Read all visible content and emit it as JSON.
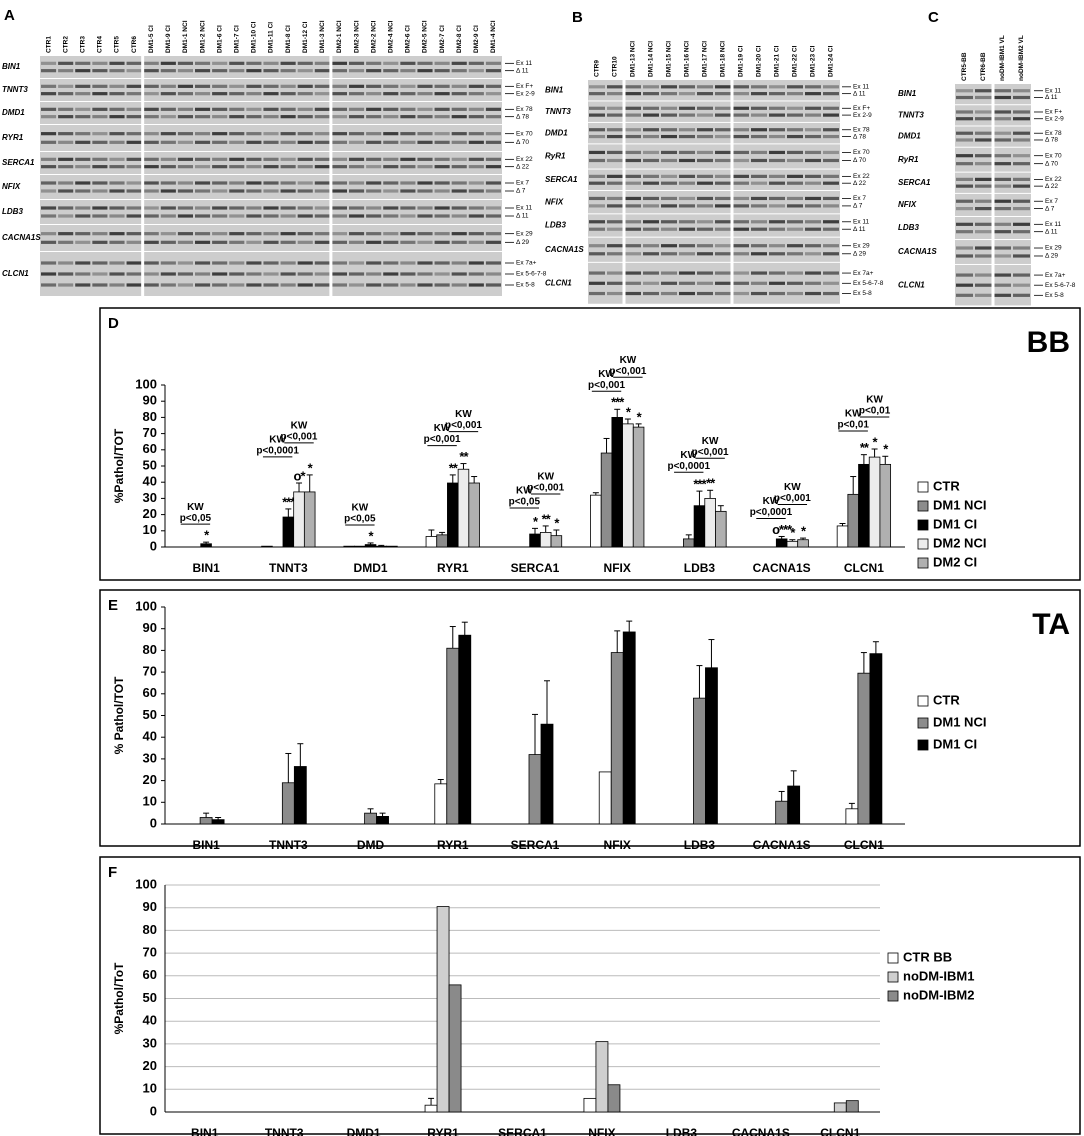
{
  "gels": [
    {
      "letter": "A",
      "lanes": [
        "CTR1",
        "CTR2",
        "CTR3",
        "CTR4",
        "CTR5",
        "CTR6",
        "DM1-5 CI",
        "DM1-9 CI",
        "DM1-1 NCI",
        "DM1-2 NCI",
        "DM1-6 CI",
        "DM1-7 CI",
        "DM1-10 CI",
        "DM1-11 CI",
        "DM1-8 CI",
        "DM1-12 CI",
        "DM1-3 NCI",
        "DM2-1 NCI",
        "DM2-3 NCI",
        "DM2-2 NCI",
        "DM2-4 NCI",
        "DM2-6 CI",
        "DM2-5 NCI",
        "DM2-7 CI",
        "DM2-8 CI",
        "DM2-9 CI",
        "DM1-4 NCI"
      ],
      "rows": [
        {
          "gene": "BIN1",
          "bands": [
            "Ex 11",
            "Δ 11"
          ]
        },
        {
          "gene": "TNNT3",
          "bands": [
            "Ex F+",
            "Ex 2-9"
          ]
        },
        {
          "gene": "DMD1",
          "bands": [
            "Ex 78",
            "Δ 78"
          ]
        },
        {
          "gene": "RYR1",
          "bands": [
            "Ex 70",
            "Δ 70"
          ]
        },
        {
          "gene": "SERCA1",
          "bands": [
            "Ex 22",
            "Δ 22"
          ]
        },
        {
          "gene": "NFIX",
          "bands": [
            "Ex 7",
            "Δ 7"
          ]
        },
        {
          "gene": "LDB3",
          "bands": [
            "Ex 11",
            "Δ 11"
          ]
        },
        {
          "gene": "CACNA1S",
          "bands": [
            "Ex 29",
            "Δ 29"
          ]
        },
        {
          "gene": "CLCN1",
          "bands": [
            "Ex 7a+",
            "Ex 5-6-7-8",
            "Ex 5-8"
          ]
        }
      ]
    },
    {
      "letter": "B",
      "lanes": [
        "CTR9",
        "CTR10",
        "DM1-13 NCI",
        "DM1-14 NCI",
        "DM1-15 NCI",
        "DM1-16 NCI",
        "DM1-17 NCI",
        "DM1-18 NCI",
        "DM1-19 CI",
        "DM1-20 CI",
        "DM1-21 CI",
        "DM1-22 CI",
        "DM1-23 CI",
        "DM1-24 CI"
      ],
      "rows": [
        {
          "gene": "BIN1",
          "bands": [
            "Ex 11",
            "Δ 11"
          ]
        },
        {
          "gene": "TNNT3",
          "bands": [
            "Ex F+",
            "Ex 2-9"
          ]
        },
        {
          "gene": "DMD1",
          "bands": [
            "Ex 78",
            "Δ 78"
          ]
        },
        {
          "gene": "RyR1",
          "bands": [
            "Ex 70",
            "Δ 70"
          ]
        },
        {
          "gene": "SERCA1",
          "bands": [
            "Ex 22",
            "Δ 22"
          ]
        },
        {
          "gene": "NFIX",
          "bands": [
            "Ex 7",
            "Δ 7"
          ]
        },
        {
          "gene": "LDB3",
          "bands": [
            "Ex 11",
            "Δ 11"
          ]
        },
        {
          "gene": "CACNA1S",
          "bands": [
            "Ex 29",
            "Δ 29"
          ]
        },
        {
          "gene": "CLCN1",
          "bands": [
            "Ex 7a+",
            "Ex 5-6-7-8",
            "Ex 5-8"
          ]
        }
      ]
    },
    {
      "letter": "C",
      "lanes": [
        "CTR5-BB",
        "CTR6-BB",
        "noDM-IBM1 VL",
        "noDM-IBM2 VL"
      ],
      "rows": [
        {
          "gene": "BIN1",
          "bands": [
            "Ex 11",
            "Δ 11"
          ]
        },
        {
          "gene": "TNNT3",
          "bands": [
            "Ex F+",
            "Ex 2-9"
          ]
        },
        {
          "gene": "DMD1",
          "bands": [
            "Ex 78",
            "Δ 78"
          ]
        },
        {
          "gene": "RyR1",
          "bands": [
            "Ex 70",
            "Δ 70"
          ]
        },
        {
          "gene": "SERCA1",
          "bands": [
            "Ex 22",
            "Δ 22"
          ]
        },
        {
          "gene": "NFIX",
          "bands": [
            "Ex 7",
            "Δ 7"
          ]
        },
        {
          "gene": "LDB3",
          "bands": [
            "Ex 11",
            "Δ 11"
          ]
        },
        {
          "gene": "CACNA1S",
          "bands": [
            "Ex 29",
            "Δ 29"
          ]
        },
        {
          "gene": "CLCN1",
          "bands": [
            "Ex 7a+",
            "Ex 5-6-7-8",
            "Ex 5-8"
          ]
        }
      ]
    }
  ],
  "chart_data": [
    {
      "type": "bar",
      "letter": "D",
      "tag": "BB",
      "ylabel": "%Pathol/TOT",
      "grid": false,
      "categories": [
        "BIN1",
        "TNNT3",
        "DMD1",
        "RYR1",
        "SERCA1",
        "NFIX",
        "LDB3",
        "CACNA1S",
        "CLCN1"
      ],
      "ylim": [
        0,
        100
      ],
      "yticks": [
        0,
        10,
        20,
        30,
        40,
        50,
        60,
        70,
        80,
        90,
        100
      ],
      "series": [
        {
          "name": "CTR",
          "color": "#ffffff",
          "values": [
            0,
            0.5,
            0.5,
            6.5,
            0,
            32,
            0,
            0,
            13
          ],
          "errors": [
            0,
            0,
            0,
            4,
            0,
            1.5,
            0,
            0,
            1.5
          ],
          "markers": [
            null,
            null,
            null,
            null,
            null,
            null,
            null,
            null,
            null
          ]
        },
        {
          "name": "DM1 NCI",
          "color": "#8c8c8c",
          "values": [
            0,
            0,
            0.5,
            7.5,
            0,
            58,
            5,
            0,
            32.5
          ],
          "errors": [
            0,
            0,
            0,
            1.5,
            0,
            9,
            2.5,
            0,
            11
          ],
          "markers": [
            null,
            null,
            null,
            null,
            null,
            null,
            null,
            null,
            null
          ]
        },
        {
          "name": "DM1 CI",
          "color": "#000000",
          "values": [
            2,
            18.5,
            1.5,
            39.5,
            8,
            80,
            25.5,
            5,
            51
          ],
          "errors": [
            1,
            5,
            1,
            5,
            3.5,
            5,
            9,
            1.5,
            6
          ],
          "markers": [
            "*",
            "***",
            "*",
            "**",
            "*",
            "***",
            "***",
            "o***",
            "**"
          ]
        },
        {
          "name": "DM2 NCI",
          "color": "#ececec",
          "values": [
            0,
            34,
            0.5,
            48,
            9,
            76,
            30,
            3.5,
            55.5
          ],
          "errors": [
            0,
            5.5,
            0.5,
            3.5,
            4,
            3,
            5,
            1,
            5
          ],
          "markers": [
            null,
            "o*",
            null,
            "**",
            "**",
            "*",
            "**",
            "*",
            "*"
          ]
        },
        {
          "name": "DM2 CI",
          "color": "#b0b0b0",
          "values": [
            0,
            34,
            0.5,
            39.5,
            7,
            74,
            22,
            4.5,
            51
          ],
          "errors": [
            0,
            10.5,
            0,
            4,
            3.5,
            2,
            3.5,
            1,
            5
          ],
          "markers": [
            null,
            "*",
            null,
            null,
            "*",
            "*",
            null,
            "*",
            "*"
          ]
        }
      ],
      "tests": [
        [
          {
            "label": "KW",
            "p": "p<0,05"
          }
        ],
        [
          {
            "label": "KW",
            "p": "p<0,0001"
          },
          {
            "label": "KW",
            "p": "p<0,001"
          }
        ],
        [
          {
            "label": "KW",
            "p": "p<0,05"
          }
        ],
        [
          {
            "label": "KW",
            "p": "p<0,001"
          },
          {
            "label": "KW",
            "p": "p<0,001"
          }
        ],
        [
          {
            "label": "KW",
            "p": "p<0,05"
          },
          {
            "label": "KW",
            "p": "p<0,001"
          }
        ],
        [
          {
            "label": "KW",
            "p": "p<0,001"
          },
          {
            "label": "KW",
            "p": "p<0,001"
          }
        ],
        [
          {
            "label": "KW",
            "p": "p<0,0001"
          },
          {
            "label": "KW",
            "p": "p<0,001"
          }
        ],
        [
          {
            "label": "KW",
            "p": "p<0,0001"
          },
          {
            "label": "KW",
            "p": "p<0,001"
          }
        ],
        [
          {
            "label": "KW",
            "p": "p<0,01"
          },
          {
            "label": "KW",
            "p": "p<0,01"
          }
        ]
      ]
    },
    {
      "type": "bar",
      "letter": "E",
      "tag": "TA",
      "ylabel": "% Pathol/TOT",
      "grid": false,
      "categories": [
        "BIN1",
        "TNNT3",
        "DMD",
        "RYR1",
        "SERCA1",
        "NFIX",
        "LDB3",
        "CACNA1S",
        "CLCN1"
      ],
      "ylim": [
        0,
        100
      ],
      "yticks": [
        0,
        10,
        20,
        30,
        40,
        50,
        60,
        70,
        80,
        90,
        100
      ],
      "series": [
        {
          "name": "CTR",
          "color": "#ffffff",
          "values": [
            0,
            0,
            0,
            18.5,
            0,
            24,
            0,
            0,
            7
          ],
          "errors": [
            0,
            0,
            0,
            2,
            0,
            0,
            0,
            0,
            2.5
          ]
        },
        {
          "name": "DM1 NCI",
          "color": "#8c8c8c",
          "values": [
            3,
            19,
            5,
            81,
            32,
            79,
            58,
            10.5,
            69.5
          ],
          "errors": [
            2,
            13.5,
            2,
            10,
            18.5,
            10,
            15,
            4.5,
            9.5
          ]
        },
        {
          "name": "DM1 CI",
          "color": "#000000",
          "values": [
            2,
            26.5,
            3.5,
            87,
            46,
            88.5,
            72,
            17.5,
            78.5
          ],
          "errors": [
            1,
            10.5,
            1.5,
            6,
            20,
            5,
            13,
            7,
            5.5
          ]
        }
      ]
    },
    {
      "type": "bar",
      "letter": "F",
      "ylabel": "%Pathol/ToT",
      "grid": true,
      "categories": [
        "BIN1",
        "TNNT3",
        "DMD1",
        "RYR1",
        "SERCA1",
        "NFIX",
        "LDB3",
        "CACNA1S",
        "CLCN1"
      ],
      "ylim": [
        0,
        100
      ],
      "yticks": [
        0,
        10,
        20,
        30,
        40,
        50,
        60,
        70,
        80,
        90,
        100
      ],
      "series": [
        {
          "name": "CTR BB",
          "color": "#ffffff",
          "values": [
            0,
            0,
            0,
            3,
            0,
            6,
            0,
            0,
            0
          ],
          "errors": [
            0,
            0,
            0,
            3,
            0,
            0,
            0,
            0,
            0
          ]
        },
        {
          "name": "noDM-IBM1",
          "color": "#cfcfcf",
          "values": [
            0,
            0,
            0,
            90.5,
            0,
            31,
            0,
            0,
            4
          ]
        },
        {
          "name": "noDM-IBM2",
          "color": "#8a8a8a",
          "values": [
            0,
            0,
            0,
            56,
            0,
            12,
            0,
            0,
            5
          ]
        }
      ]
    }
  ]
}
